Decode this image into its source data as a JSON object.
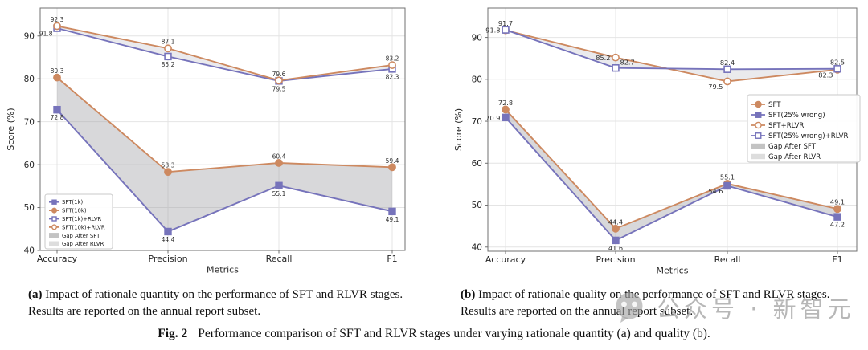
{
  "colors": {
    "purple": "#7673bb",
    "orange": "#cd8960",
    "gap_dark": "#a2a2a8",
    "gap_light": "#b9b9c4",
    "grid": "#e4e4e4",
    "spine": "#707070",
    "tick_text": "#262626",
    "annotation_text": "#2e2e2e",
    "legend_border": "#c9c9c9",
    "legend_gap_dark": "#c3c3c3",
    "legend_gap_light": "#dddddd",
    "watermark": "#b7b7b7"
  },
  "watermark": {
    "text": "公众号 · 新智元"
  },
  "captions": {
    "a": {
      "label": "(a)",
      "lines": [
        "Impact of rationale quantity on the performance of SFT and RLVR stages.",
        "Results are reported on the annual report subset."
      ]
    },
    "b": {
      "label": "(b)",
      "lines": [
        "Impact of rationale quality on the performance of SFT and RLVR stages.",
        "Results are reported on the annual report subset."
      ]
    },
    "fig": {
      "label": "Fig. 2",
      "text": "Performance comparison of SFT and RLVR stages under varying rationale quantity (a) and quality (b)."
    }
  },
  "chart_data": [
    {
      "type": "line",
      "title": "",
      "xlabel": "Metrics",
      "ylabel": "Score (%)",
      "categories": [
        "Accuracy",
        "Precision",
        "Recall",
        "F1"
      ],
      "ylim": [
        40,
        96.5
      ],
      "yticks": [
        40,
        50,
        60,
        70,
        80,
        90
      ],
      "grid": true,
      "legend_position": "lower-left",
      "series": [
        {
          "name": "SFT(1k)",
          "color": "purple",
          "marker": "square",
          "open": false,
          "values": [
            72.8,
            44.4,
            55.1,
            49.1
          ],
          "label_pos": [
            "below",
            "below",
            "below",
            "below"
          ]
        },
        {
          "name": "SFT(10k)",
          "color": "orange",
          "marker": "circle",
          "open": false,
          "values": [
            80.3,
            58.3,
            60.4,
            59.4
          ],
          "label_pos": [
            "above",
            "above",
            "above",
            "above"
          ]
        },
        {
          "name": "SFT(1k)+RLVR",
          "color": "purple",
          "marker": "square",
          "open": true,
          "values": [
            91.8,
            85.2,
            79.5,
            82.3
          ],
          "label_pos": [
            "left-below",
            "below",
            "below",
            "below"
          ]
        },
        {
          "name": "SFT(10k)+RLVR",
          "color": "orange",
          "marker": "circle",
          "open": true,
          "values": [
            92.3,
            87.1,
            79.6,
            83.2
          ],
          "label_pos": [
            "above",
            "above",
            "above",
            "above"
          ]
        }
      ],
      "gaps": [
        {
          "name": "Gap After SFT",
          "between": [
            0,
            1
          ],
          "shade": "dark"
        },
        {
          "name": "Gap After RLVR",
          "between": [
            2,
            3
          ],
          "shade": "light"
        }
      ]
    },
    {
      "type": "line",
      "title": "",
      "xlabel": "Metrics",
      "ylabel": "Score (%)",
      "categories": [
        "Accuracy",
        "Precision",
        "Recall",
        "F1"
      ],
      "ylim": [
        39,
        97
      ],
      "yticks": [
        40,
        50,
        60,
        70,
        80,
        90
      ],
      "grid": true,
      "legend_position": "center-right",
      "series": [
        {
          "name": "SFT",
          "color": "orange",
          "marker": "circle",
          "open": false,
          "values": [
            72.8,
            44.4,
            55.1,
            49.1
          ],
          "label_pos": [
            "above",
            "above",
            "above",
            "above"
          ]
        },
        {
          "name": "SFT(25% wrong)",
          "color": "purple",
          "marker": "square",
          "open": false,
          "values": [
            70.9,
            41.6,
            54.6,
            47.2
          ],
          "label_pos": [
            "left",
            "below",
            "left-below",
            "below"
          ]
        },
        {
          "name": "SFT+RLVR",
          "color": "orange",
          "marker": "circle",
          "open": true,
          "values": [
            91.7,
            85.2,
            79.5,
            82.3
          ],
          "label_pos": [
            "above",
            "left",
            "left-below",
            "left-below"
          ]
        },
        {
          "name": "SFT(25% wrong)+RLVR",
          "color": "purple",
          "marker": "square",
          "open": true,
          "values": [
            91.8,
            82.7,
            82.4,
            82.5
          ],
          "label_pos": [
            "left",
            "above-right",
            "above",
            "above"
          ]
        }
      ],
      "gaps": [
        {
          "name": "Gap After SFT",
          "between": [
            0,
            1
          ],
          "shade": "dark"
        },
        {
          "name": "Gap After RLVR",
          "between": [
            2,
            3
          ],
          "shade": "light"
        }
      ]
    }
  ]
}
